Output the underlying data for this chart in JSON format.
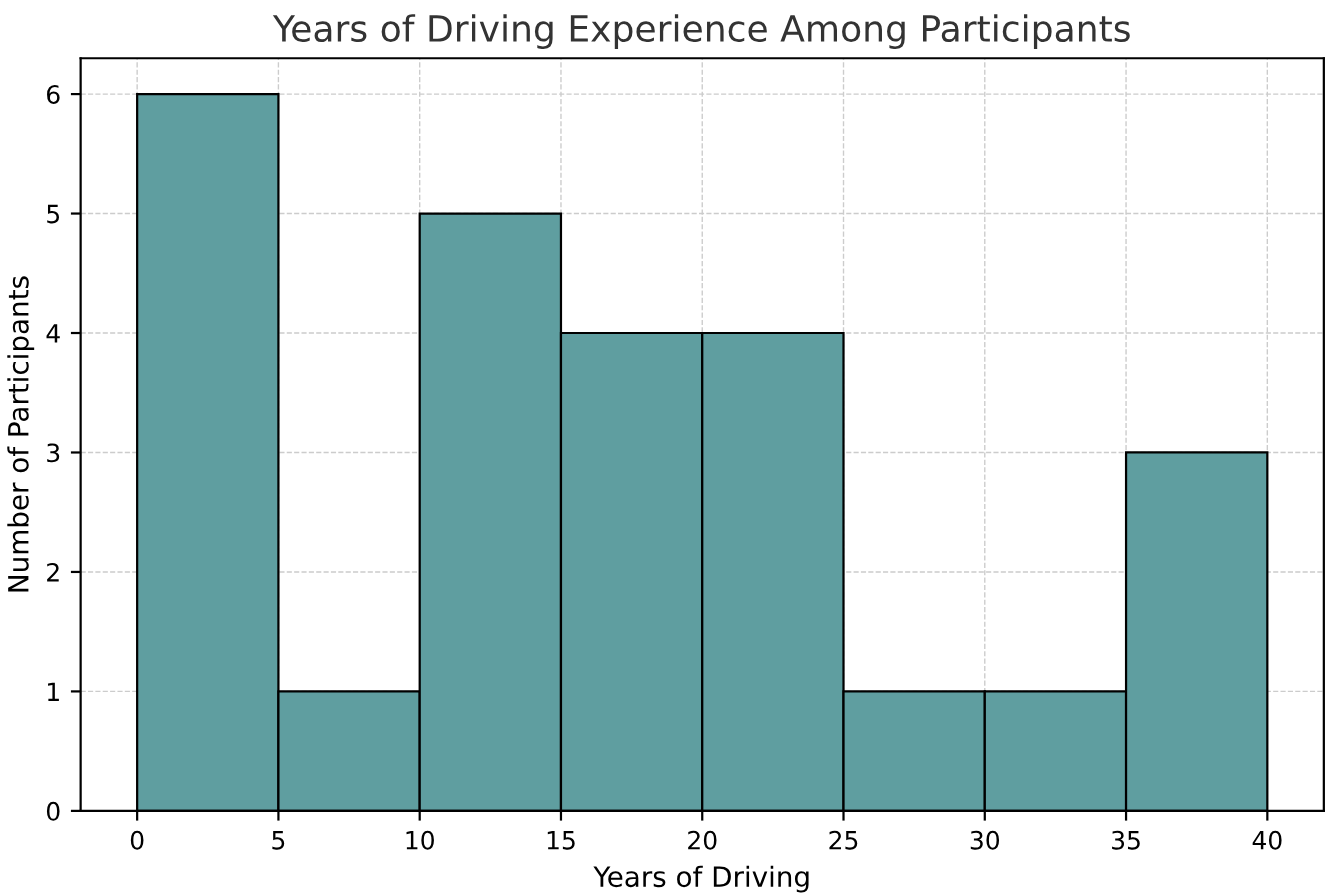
{
  "chart_data": {
    "type": "histogram",
    "title": "Years of Driving Experience Among Participants",
    "xlabel": "Years of Driving",
    "ylabel": "Number of Participants",
    "bins": [
      0,
      5,
      10,
      15,
      20,
      25,
      30,
      35,
      40
    ],
    "values": [
      6,
      1,
      5,
      4,
      4,
      1,
      1,
      3
    ],
    "color": "#5f9ea0",
    "xlim": [
      -2,
      42
    ],
    "xticks": [
      0,
      5,
      10,
      15,
      20,
      25,
      30,
      35,
      40
    ],
    "ylim": [
      0,
      6.3
    ],
    "yticks": [
      0,
      1,
      2,
      3,
      4,
      5,
      6
    ],
    "grid": true
  }
}
